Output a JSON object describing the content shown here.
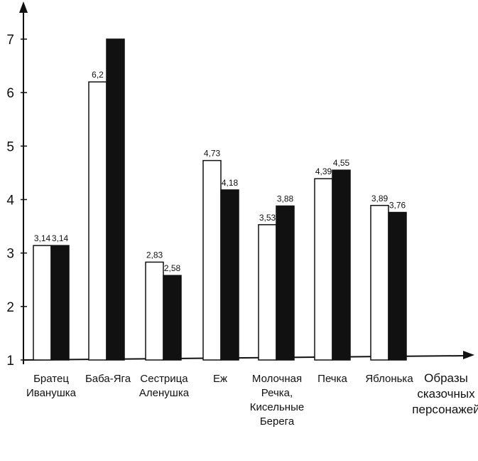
{
  "chart_data": {
    "type": "bar",
    "categories": [
      [
        "Братец",
        "Иванушка"
      ],
      [
        "Баба-Яга"
      ],
      [
        "Сестрица",
        "Аленушка"
      ],
      [
        "Еж"
      ],
      [
        "Молочная",
        "Речка,",
        "Кисельные",
        "Берега"
      ],
      [
        "Печка"
      ],
      [
        "Яблонька"
      ]
    ],
    "series": [
      {
        "fill": "#ffffff",
        "values": [
          3.14,
          6.2,
          2.83,
          4.73,
          3.53,
          4.39,
          3.89
        ],
        "labels": [
          "3,14",
          "6,2",
          "2,83",
          "4,73",
          "3,53",
          "4,39",
          "3,89"
        ]
      },
      {
        "fill": "#111111",
        "values": [
          3.14,
          7.0,
          2.58,
          4.18,
          3.88,
          4.55,
          3.76
        ],
        "labels": [
          "3,14",
          "",
          "2,58",
          "4,18",
          "3,88",
          "4,55",
          "3,76"
        ]
      }
    ],
    "xlabel": [
      "Образы",
      "сказочных",
      "персонажей"
    ],
    "ylabel": "",
    "ylim": [
      1,
      7.5
    ],
    "yticks": [
      "1",
      "2",
      "3",
      "4",
      "5",
      "6",
      "7"
    ],
    "grid": false,
    "legend": "none"
  }
}
